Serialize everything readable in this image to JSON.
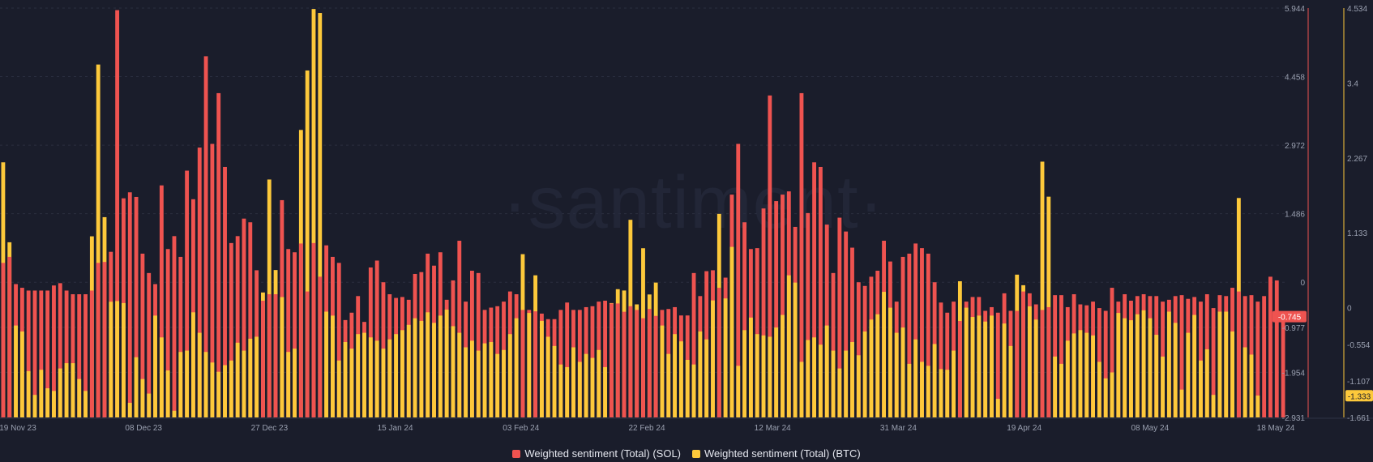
{
  "watermark": "·santiment·",
  "legend": {
    "sol_label": "Weighted sentiment (Total) (SOL)",
    "btc_label": "Weighted sentiment (Total) (BTC)"
  },
  "colors": {
    "background": "#1a1d2b",
    "sol": "#ef5350",
    "btc": "#fdc93b",
    "grid": "#2a2e3f",
    "axis_text": "#9aa0b0"
  },
  "chart_data": {
    "type": "bar",
    "x_tick_labels": [
      "19 Nov 23",
      "08 Dec 23",
      "27 Dec 23",
      "15 Jan 24",
      "03 Feb 24",
      "22 Feb 24",
      "12 Mar 24",
      "31 Mar 24",
      "19 Apr 24",
      "08 May 24",
      "18 May 24"
    ],
    "left_axis": {
      "series": "Weighted sentiment (Total) (SOL)",
      "ticks": [
        "5.944",
        "4.458",
        "2.972",
        "1.486",
        "0",
        "-0.977",
        "-1.954",
        "-2.931"
      ],
      "ylim": [
        -2.931,
        5.944
      ],
      "last_value_label": "-0.745"
    },
    "right_axis": {
      "series": "Weighted sentiment (Total) (BTC)",
      "ticks": [
        "4.534",
        "3.4",
        "2.267",
        "1.133",
        "0",
        "-0.554",
        "-1.107",
        "-1.661"
      ],
      "ylim": [
        -1.661,
        4.534
      ],
      "last_value_label": "-1.333"
    },
    "series": [
      {
        "name": "Weighted sentiment (Total) (SOL)",
        "color": "#ef5350",
        "values": [
          0.42,
          0.55,
          -0.04,
          -0.12,
          -0.18,
          -0.18,
          -0.18,
          -0.18,
          -0.07,
          -0.02,
          -0.18,
          -0.26,
          -0.26,
          -0.26,
          -0.18,
          0.42,
          0.44,
          0.66,
          5.9,
          1.82,
          1.95,
          1.85,
          0.62,
          0.2,
          -0.04,
          2.1,
          0.72,
          1.0,
          0.55,
          2.42,
          1.8,
          2.92,
          4.9,
          3.0,
          4.1,
          2.5,
          0.85,
          1.0,
          1.38,
          1.3,
          0.26,
          -0.4,
          -0.26,
          -0.26,
          1.78,
          0.72,
          0.65,
          0.84,
          -0.2,
          0.85,
          0.12,
          0.8,
          0.55,
          0.42,
          -0.82,
          -0.66,
          -0.3,
          -0.86,
          0.32,
          0.47,
          0.0,
          -0.26,
          -0.34,
          -0.32,
          -0.38,
          0.18,
          0.22,
          0.62,
          0.36,
          0.65,
          -0.38,
          0.04,
          0.9,
          -0.42,
          0.25,
          0.2,
          -0.6,
          -0.55,
          -0.52,
          -0.42,
          -0.2,
          -0.26,
          -0.6,
          -0.6,
          -0.63,
          -0.68,
          -0.8,
          -0.8,
          -0.6,
          -0.44,
          -0.6,
          -0.6,
          -0.54,
          -0.52,
          -0.42,
          -0.4,
          -0.46,
          -0.46,
          -0.64,
          -0.52,
          -0.6,
          -0.78,
          -0.58,
          -0.73,
          -0.6,
          -0.58,
          -0.54,
          -0.72,
          -0.72,
          0.2,
          -0.3,
          0.24,
          0.26,
          -0.12,
          0.1,
          1.9,
          3.0,
          1.3,
          0.72,
          0.74,
          1.6,
          4.05,
          1.76,
          1.9,
          1.97,
          1.2,
          4.1,
          1.5,
          2.6,
          2.5,
          1.25,
          0.2,
          1.4,
          1.1,
          0.75,
          0.0,
          -0.08,
          0.12,
          0.25,
          0.9,
          0.45,
          -0.42,
          0.55,
          0.62,
          0.84,
          0.74,
          0.62,
          0.0,
          -0.44,
          -0.66,
          -0.42,
          -0.84,
          -0.42,
          -0.32,
          -0.32,
          -0.62,
          -0.54,
          -0.66,
          -0.24,
          -0.62,
          -0.62,
          -0.2,
          -0.24,
          -0.48,
          -0.6,
          -0.54,
          -0.28,
          -0.28,
          -0.54,
          -0.26,
          -0.48,
          -0.5,
          -0.42,
          -0.56,
          -0.62,
          -0.12,
          -0.42,
          -0.26,
          -0.4,
          -0.3,
          -0.26,
          -0.3,
          -0.3,
          -0.42,
          -0.38,
          -0.3,
          -0.28,
          -0.36,
          -0.32,
          -0.42,
          -0.26,
          -0.56,
          -0.28,
          -0.3,
          -0.12,
          -0.2,
          -0.3,
          -0.28,
          -0.42,
          -0.3,
          0.12,
          0.04,
          -0.74
        ]
      },
      {
        "name": "Weighted sentiment (Total) (BTC)",
        "color": "#fdc93b",
        "values": [
          2.2,
          0.99,
          -0.27,
          -0.36,
          -0.96,
          -1.32,
          -0.94,
          -1.22,
          -1.26,
          -0.92,
          -0.84,
          -0.84,
          -1.08,
          -1.26,
          1.08,
          3.68,
          1.37,
          0.09,
          0.1,
          0.07,
          -1.44,
          -0.75,
          -1.08,
          -1.3,
          -0.12,
          -0.45,
          -0.95,
          -1.56,
          -0.67,
          -0.65,
          -0.07,
          -0.38,
          -0.67,
          -0.83,
          -0.97,
          -0.87,
          -0.8,
          -0.53,
          -0.65,
          -0.47,
          -0.44,
          0.23,
          1.94,
          0.57,
          0.16,
          -0.67,
          -0.62,
          2.69,
          3.59,
          4.52,
          4.46,
          -0.06,
          -0.12,
          -0.8,
          -0.52,
          -0.62,
          -0.4,
          -0.38,
          -0.45,
          -0.5,
          -0.62,
          -0.48,
          -0.4,
          -0.34,
          -0.26,
          -0.16,
          -0.2,
          -0.07,
          -0.23,
          -0.12,
          -0.03,
          -0.28,
          -0.38,
          -0.6,
          -0.5,
          -0.65,
          -0.54,
          -0.52,
          -0.7,
          -0.64,
          -0.4,
          -0.16,
          0.81,
          -0.08,
          0.49,
          -0.2,
          -0.44,
          -0.58,
          -0.86,
          -0.9,
          -0.6,
          -0.82,
          -0.7,
          -0.76,
          -0.64,
          -0.9,
          0.07,
          0.28,
          0.26,
          1.33,
          0.05,
          0.9,
          0.2,
          0.38,
          -0.27,
          -0.7,
          -0.4,
          -0.51,
          -0.79,
          -0.86,
          -0.36,
          -0.48,
          0.11,
          1.42,
          0.14,
          0.92,
          -0.88,
          -0.34,
          -0.15,
          -0.4,
          -0.42,
          -0.44,
          -0.3,
          -0.11,
          0.49,
          0.38,
          -0.82,
          -0.49,
          -0.45,
          -0.56,
          -0.27,
          -0.65,
          -0.92,
          -0.65,
          -0.52,
          -0.72,
          -0.36,
          -0.18,
          -0.1,
          0.24,
          0.0,
          -0.38,
          -0.3,
          -0.85,
          -0.48,
          -0.82,
          -0.88,
          -0.55,
          -0.93,
          -0.94,
          -0.65,
          0.4,
          0.0,
          -0.14,
          -0.12,
          -0.21,
          -0.12,
          -1.38,
          -0.24,
          -0.58,
          0.5,
          0.34,
          0.02,
          -0.18,
          2.21,
          1.68,
          -0.74,
          -0.85,
          -0.5,
          -0.39,
          -0.34,
          -0.38,
          -0.42,
          -0.82,
          -1.07,
          -0.98,
          -0.08,
          -0.16,
          -0.19,
          -0.1,
          -0.04,
          -0.16,
          -0.41,
          -0.74,
          -0.06,
          -0.23,
          -1.24,
          -0.38,
          -0.11,
          -0.8,
          -0.63,
          -1.32,
          -0.06,
          -0.06,
          -0.36,
          1.66,
          -0.6,
          -0.71,
          -1.33
        ]
      }
    ]
  }
}
